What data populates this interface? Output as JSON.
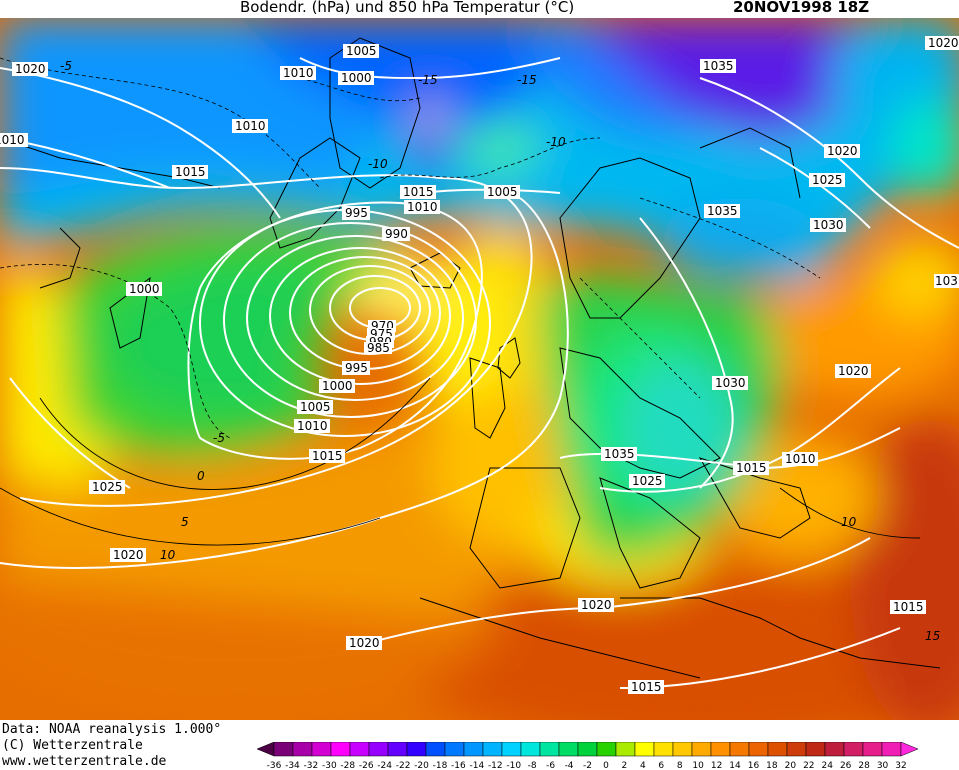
{
  "header": {
    "title": "Bodendr. (hPa) und 850 hPa Temperatur (°C)",
    "datestamp": "20NOV1998 18Z"
  },
  "footer": {
    "data_source": "Data: NOAA reanalysis 1.000°",
    "copyright": "(C) Wetterzentrale",
    "website": "www.wetterzentrale.de"
  },
  "legend": {
    "ticks": [
      "-36",
      "-34",
      "-32",
      "-30",
      "-28",
      "-26",
      "-24",
      "-22",
      "-20",
      "-18",
      "-16",
      "-14",
      "-12",
      "-10",
      "-8",
      "-6",
      "-4",
      "-2",
      "0",
      "2",
      "4",
      "6",
      "8",
      "10",
      "12",
      "14",
      "16",
      "18",
      "20",
      "22",
      "24",
      "26",
      "28",
      "30",
      "32"
    ],
    "colors": [
      "#4b0046",
      "#7a0078",
      "#a800a8",
      "#d200d2",
      "#ff00ff",
      "#c800ff",
      "#9600ff",
      "#6400ff",
      "#3200ff",
      "#0050ff",
      "#0078ff",
      "#0096ff",
      "#00b4ff",
      "#00d2ff",
      "#00e6dc",
      "#00e6a0",
      "#00dc64",
      "#00d23c",
      "#28d200",
      "#aaeb00",
      "#ffff00",
      "#ffe100",
      "#ffc800",
      "#ffaa00",
      "#ff9100",
      "#f57800",
      "#eb6400",
      "#dc5000",
      "#cd3c0a",
      "#be2814",
      "#be1e3c",
      "#d21e64",
      "#e61e8c",
      "#f01eb4",
      "#ff28dc"
    ]
  },
  "isobar_labels": {
    "l1020a": "1020",
    "l1010a": "1010",
    "l1005a": "1005",
    "l1010b": "1010",
    "l1000a": "1000",
    "l1020b": "1020",
    "l1035a": "1035",
    "l1010c": "1010",
    "l1015a": "1015",
    "l1020c": "1020",
    "l1025a": "1025",
    "l1030a": "1030",
    "l1015b": "1015",
    "l1010d": "1010",
    "l1005b": "1005",
    "l995a": "995",
    "l990": "990",
    "l1035b": "1035",
    "l1000b": "1000",
    "l970": "970",
    "l975": "975",
    "l980": "980",
    "l985": "985",
    "l995b": "995",
    "l1000c": "1000",
    "l1005c": "1005",
    "l1010e": "1010",
    "l1015c": "1015",
    "l1030b": "1030",
    "l1020d": "1020",
    "l1035c": "1035",
    "l1015d": "1015",
    "l1010f": "1010",
    "l1025b": "1025",
    "l1025c": "1025",
    "l1020e": "1020",
    "l1020f": "1020",
    "l1020g": "1020",
    "l1015e": "1015",
    "l1015f": "1015",
    "l1035d": "103"
  },
  "temperature_labels": {
    "t1": "-5",
    "t2": "-15",
    "t3": "-15",
    "t4": "-10",
    "t5": "-10",
    "t6": "-5",
    "t7": "0",
    "t8": "5",
    "t9": "10",
    "t10": "10",
    "t11": "15"
  }
}
